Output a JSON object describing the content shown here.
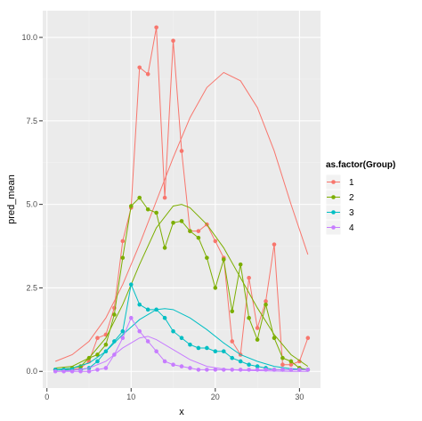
{
  "chart_data": {
    "type": "line",
    "xlabel": "x",
    "ylabel": "pred_mean",
    "xlim": [
      -0.5,
      32.5
    ],
    "ylim": [
      -0.5,
      10.8
    ],
    "x_ticks": [
      0,
      10,
      20,
      30
    ],
    "y_ticks": [
      0.0,
      2.5,
      5.0,
      7.5,
      10.0
    ],
    "x_tick_labels": [
      "0",
      "10",
      "20",
      "30"
    ],
    "y_tick_labels": [
      "0.0",
      "2.5",
      "5.0",
      "7.5",
      "10.0"
    ],
    "grid": true,
    "legend": {
      "title": "as.factor(Group)",
      "position": "right"
    },
    "series": [
      {
        "name": "1",
        "color": "#F8766D",
        "points": [
          [
            1,
            0.05
          ],
          [
            2,
            0.05
          ],
          [
            3,
            0.05
          ],
          [
            4,
            0.1
          ],
          [
            5,
            0.3
          ],
          [
            6,
            1.0
          ],
          [
            7,
            1.1
          ],
          [
            8,
            1.9
          ],
          [
            9,
            3.9
          ],
          [
            10,
            4.9
          ],
          [
            11,
            9.1
          ],
          [
            12,
            8.9
          ],
          [
            13,
            10.3
          ],
          [
            14,
            5.2
          ],
          [
            15,
            9.9
          ],
          [
            16,
            6.6
          ],
          [
            17,
            4.2
          ],
          [
            18,
            4.2
          ],
          [
            19,
            4.4
          ],
          [
            20,
            3.9
          ],
          [
            21,
            3.4
          ],
          [
            22,
            0.9
          ],
          [
            23,
            0.5
          ],
          [
            24,
            2.8
          ],
          [
            25,
            1.3
          ],
          [
            26,
            2.1
          ],
          [
            27,
            3.8
          ],
          [
            28,
            0.2
          ],
          [
            29,
            0.2
          ],
          [
            30,
            0.3
          ],
          [
            31,
            1.0
          ]
        ],
        "smooth": [
          [
            1,
            0.3
          ],
          [
            3,
            0.5
          ],
          [
            5,
            0.9
          ],
          [
            7,
            1.6
          ],
          [
            9,
            2.6
          ],
          [
            11,
            3.8
          ],
          [
            13,
            5.1
          ],
          [
            15,
            6.4
          ],
          [
            17,
            7.6
          ],
          [
            19,
            8.5
          ],
          [
            21,
            8.95
          ],
          [
            23,
            8.7
          ],
          [
            25,
            7.9
          ],
          [
            27,
            6.6
          ],
          [
            29,
            5.0
          ],
          [
            31,
            3.5
          ]
        ]
      },
      {
        "name": "2",
        "color": "#7CAE00",
        "points": [
          [
            1,
            0.05
          ],
          [
            2,
            0.05
          ],
          [
            3,
            0.1
          ],
          [
            4,
            0.15
          ],
          [
            5,
            0.4
          ],
          [
            6,
            0.5
          ],
          [
            7,
            0.8
          ],
          [
            8,
            1.7
          ],
          [
            9,
            3.4
          ],
          [
            10,
            4.95
          ],
          [
            11,
            5.2
          ],
          [
            12,
            4.85
          ],
          [
            13,
            4.75
          ],
          [
            14,
            3.7
          ],
          [
            15,
            4.45
          ],
          [
            16,
            4.5
          ],
          [
            17,
            4.2
          ],
          [
            18,
            4.0
          ],
          [
            19,
            3.4
          ],
          [
            20,
            2.5
          ],
          [
            21,
            3.35
          ],
          [
            22,
            1.8
          ],
          [
            23,
            3.2
          ],
          [
            24,
            1.6
          ],
          [
            25,
            0.95
          ],
          [
            26,
            2.0
          ],
          [
            27,
            1.0
          ],
          [
            28,
            0.4
          ],
          [
            29,
            0.3
          ],
          [
            30,
            0.1
          ],
          [
            31,
            0.05
          ]
        ],
        "smooth": [
          [
            1,
            0.1
          ],
          [
            3,
            0.15
          ],
          [
            5,
            0.4
          ],
          [
            7,
            1.0
          ],
          [
            9,
            2.0
          ],
          [
            11,
            3.2
          ],
          [
            13,
            4.3
          ],
          [
            15,
            4.95
          ],
          [
            16,
            5.0
          ],
          [
            17,
            4.9
          ],
          [
            19,
            4.4
          ],
          [
            21,
            3.7
          ],
          [
            23,
            2.8
          ],
          [
            25,
            1.9
          ],
          [
            27,
            1.1
          ],
          [
            29,
            0.5
          ],
          [
            31,
            0.15
          ]
        ]
      },
      {
        "name": "3",
        "color": "#00BFC4",
        "points": [
          [
            1,
            0.05
          ],
          [
            2,
            0.05
          ],
          [
            3,
            0.05
          ],
          [
            4,
            0.05
          ],
          [
            5,
            0.1
          ],
          [
            6,
            0.3
          ],
          [
            7,
            0.6
          ],
          [
            8,
            0.9
          ],
          [
            9,
            1.2
          ],
          [
            10,
            2.6
          ],
          [
            11,
            2.0
          ],
          [
            12,
            1.85
          ],
          [
            13,
            1.85
          ],
          [
            14,
            1.6
          ],
          [
            15,
            1.2
          ],
          [
            16,
            1.0
          ],
          [
            17,
            0.8
          ],
          [
            18,
            0.7
          ],
          [
            19,
            0.7
          ],
          [
            20,
            0.6
          ],
          [
            21,
            0.6
          ],
          [
            22,
            0.4
          ],
          [
            23,
            0.3
          ],
          [
            24,
            0.2
          ],
          [
            25,
            0.15
          ],
          [
            26,
            0.1
          ],
          [
            27,
            0.05
          ],
          [
            28,
            0.05
          ],
          [
            29,
            0.05
          ],
          [
            30,
            0.05
          ],
          [
            31,
            0.05
          ]
        ],
        "smooth": [
          [
            1,
            0.05
          ],
          [
            3,
            0.1
          ],
          [
            5,
            0.25
          ],
          [
            7,
            0.6
          ],
          [
            9,
            1.1
          ],
          [
            11,
            1.55
          ],
          [
            13,
            1.85
          ],
          [
            14,
            1.88
          ],
          [
            15,
            1.85
          ],
          [
            17,
            1.6
          ],
          [
            19,
            1.25
          ],
          [
            21,
            0.85
          ],
          [
            23,
            0.5
          ],
          [
            25,
            0.3
          ],
          [
            27,
            0.15
          ],
          [
            29,
            0.08
          ],
          [
            31,
            0.05
          ]
        ]
      },
      {
        "name": "4",
        "color": "#C77CFF",
        "points": [
          [
            1,
            0.0
          ],
          [
            2,
            0.0
          ],
          [
            3,
            0.0
          ],
          [
            4,
            0.0
          ],
          [
            5,
            0.0
          ],
          [
            6,
            0.05
          ],
          [
            7,
            0.1
          ],
          [
            8,
            0.5
          ],
          [
            9,
            1.0
          ],
          [
            10,
            1.6
          ],
          [
            11,
            1.2
          ],
          [
            12,
            0.9
          ],
          [
            13,
            0.6
          ],
          [
            14,
            0.3
          ],
          [
            15,
            0.2
          ],
          [
            16,
            0.15
          ],
          [
            17,
            0.1
          ],
          [
            18,
            0.05
          ],
          [
            19,
            0.05
          ],
          [
            20,
            0.05
          ],
          [
            21,
            0.05
          ],
          [
            22,
            0.05
          ],
          [
            23,
            0.05
          ],
          [
            24,
            0.05
          ],
          [
            25,
            0.05
          ],
          [
            26,
            0.05
          ],
          [
            27,
            0.05
          ],
          [
            28,
            0.05
          ],
          [
            29,
            0.05
          ],
          [
            30,
            0.05
          ],
          [
            31,
            0.05
          ]
        ],
        "smooth": [
          [
            1,
            0.0
          ],
          [
            3,
            0.03
          ],
          [
            5,
            0.1
          ],
          [
            7,
            0.3
          ],
          [
            9,
            0.7
          ],
          [
            11,
            1.0
          ],
          [
            12,
            1.05
          ],
          [
            13,
            0.95
          ],
          [
            15,
            0.65
          ],
          [
            17,
            0.35
          ],
          [
            19,
            0.15
          ],
          [
            21,
            0.07
          ],
          [
            23,
            0.03
          ],
          [
            25,
            0.02
          ],
          [
            27,
            0.01
          ],
          [
            29,
            0.0
          ],
          [
            31,
            0.0
          ]
        ]
      }
    ]
  }
}
